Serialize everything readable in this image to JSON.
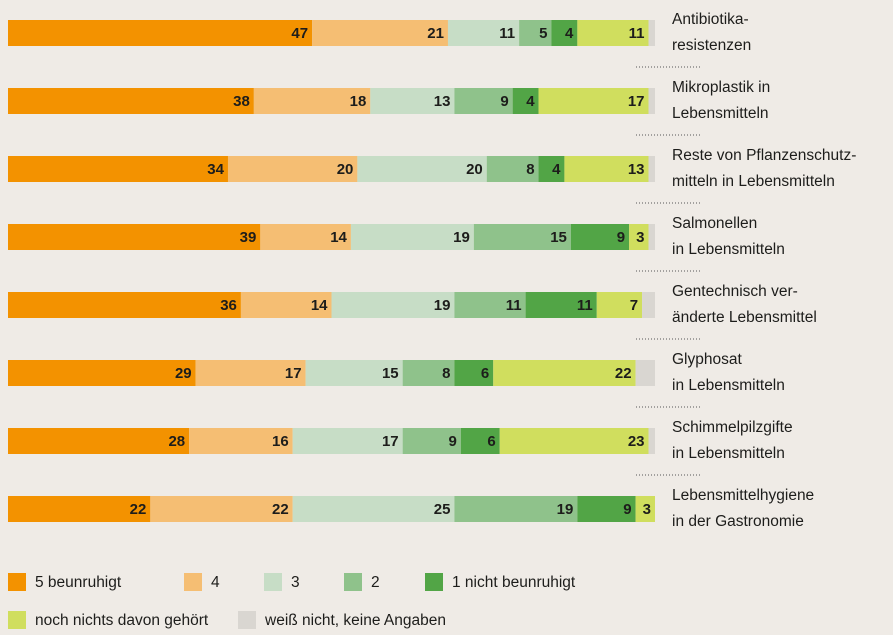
{
  "chart_data": {
    "type": "stacked-bar-horizontal",
    "categories": [
      [
        "Antibiotika-",
        "resistenzen"
      ],
      [
        "Mikroplastik in",
        "Lebensmitteln"
      ],
      [
        "Reste von Pflanzenschutz-",
        "mitteln in Lebensmitteln"
      ],
      [
        "Salmonellen",
        "in Lebensmitteln"
      ],
      [
        "Gentechnisch ver-",
        "änderte Lebensmittel"
      ],
      [
        "Glyphosat",
        "in Lebensmitteln"
      ],
      [
        "Schimmelpilzgifte",
        "in Lebensmitteln"
      ],
      [
        "Lebensmittelhygiene",
        "in der Gastronomie"
      ]
    ],
    "series": [
      {
        "name": "5 beunruhigt",
        "color": "#f39200",
        "labeled": true,
        "values": [
          47,
          38,
          34,
          39,
          36,
          29,
          28,
          22
        ]
      },
      {
        "name": "4",
        "color": "#f5be73",
        "labeled": true,
        "values": [
          21,
          18,
          20,
          14,
          14,
          17,
          16,
          22
        ]
      },
      {
        "name": "3",
        "color": "#c7ddc6",
        "labeled": true,
        "values": [
          11,
          13,
          20,
          19,
          19,
          15,
          17,
          25
        ]
      },
      {
        "name": "2",
        "color": "#8fc28b",
        "labeled": true,
        "values": [
          5,
          9,
          8,
          15,
          11,
          8,
          9,
          19
        ]
      },
      {
        "name": "1 nicht beunruhigt",
        "color": "#52a546",
        "labeled": true,
        "values": [
          4,
          4,
          4,
          9,
          11,
          6,
          6,
          9
        ]
      },
      {
        "name": "noch nichts davon gehört",
        "color": "#d0de5e",
        "labeled": true,
        "values": [
          11,
          17,
          13,
          3,
          7,
          22,
          23,
          3
        ]
      },
      {
        "name": "weiß nicht, keine Angaben",
        "color": "#d9d6d1",
        "labeled": false,
        "values": [
          1,
          1,
          1,
          1,
          2,
          3,
          1,
          0
        ]
      }
    ],
    "xlim": [
      0,
      100
    ]
  }
}
